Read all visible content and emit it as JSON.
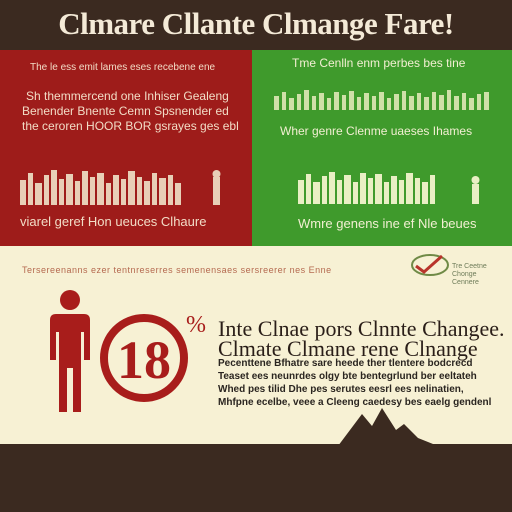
{
  "header": {
    "title": "Clmare Cllante Clmange Fare!"
  },
  "red_panel": {
    "caption_top": "The le ess emit lames eses recebene ene",
    "para_line1": "Sh themmercend one Inhiser Gealeng",
    "para_line2": "Benender Bnente Cemn Spsnender ed",
    "para_line3": "the ceroren HOOR BOR gsrayes ges ebl",
    "caption_bottom": "viarel geref Hon ueuces Clhaure",
    "colors": {
      "background": "#9e1c1a",
      "text": "#f2dcc6"
    }
  },
  "green_panel": {
    "caption_top": "Tme Cenlln enm perbes bes tine",
    "para_line1": "Wher genre Clenme uaeses Ihames",
    "caption_bottom": "Wmre genens ine ef Nle beues",
    "colors": {
      "background": "#3f9a2c",
      "text": "#f2efd2"
    }
  },
  "info": {
    "strip_text": "Tersereenanns ezer tentnreserres semenensaes sersreerer nes Enne",
    "logo_text": "Tre Ceetne Chonge Cennere",
    "badge_number": "18",
    "badge_percent": "%",
    "heading_line1": "Inte Clnae pors Clnnte Changee.",
    "heading_line2": "Clmate Clmane rene Clnange",
    "body_line1": "Pecenttene Bfhatre sare heede ther tlentere bodcrecd",
    "body_line2": "Teaset ees neunrdes olgy bte bentegrlund ber eeltateh",
    "body_line3": "Whed pes tilid Dhe pes  serutes eesrl ees nelinatien,",
    "body_line4": "Mhfpne ecelbe, veee a Cleeng caedesy bes eaelg gendenl",
    "colors": {
      "badge": "#a81d1b",
      "background": "#f7f1d4"
    }
  },
  "footer": {
    "colors": {
      "background": "#3b2a20"
    }
  }
}
